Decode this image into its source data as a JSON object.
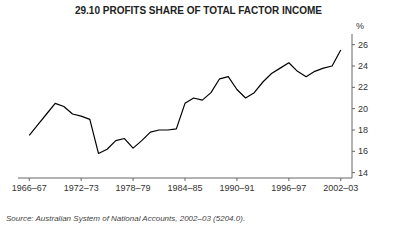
{
  "chart_data": {
    "type": "line",
    "title": "29.10   PROFITS SHARE OF TOTAL FACTOR INCOME",
    "ylabel": "%",
    "annotations": [
      "Source: Australian System of National Accounts, 2002–03 (5204.0)."
    ],
    "color": "#000000",
    "grid": false,
    "xlim": [
      1965.2,
      2003.8
    ],
    "xticks": [
      {
        "value": 1966.5,
        "label": "1966–67"
      },
      {
        "value": 1972.5,
        "label": "1972–73"
      },
      {
        "value": 1978.5,
        "label": "1978–79"
      },
      {
        "value": 1984.5,
        "label": "1984–85"
      },
      {
        "value": 1990.5,
        "label": "1990–91"
      },
      {
        "value": 1996.5,
        "label": "1996–97"
      },
      {
        "value": 2002.5,
        "label": "2002–03"
      }
    ],
    "ylim": [
      13.5,
      27.0
    ],
    "yticks": [
      14,
      16,
      18,
      20,
      22,
      24,
      26
    ],
    "x": [
      1966.5,
      1967.5,
      1968.5,
      1969.5,
      1970.5,
      1971.5,
      1972.5,
      1973.5,
      1974.5,
      1975.5,
      1976.5,
      1977.5,
      1978.5,
      1979.5,
      1980.5,
      1981.5,
      1982.5,
      1983.5,
      1984.5,
      1985.5,
      1986.5,
      1987.5,
      1988.5,
      1989.5,
      1990.5,
      1991.5,
      1992.5,
      1993.5,
      1994.5,
      1995.5,
      1996.5,
      1997.5,
      1998.5,
      1999.5,
      2000.5,
      2001.5,
      2002.5
    ],
    "values": [
      17.5,
      18.5,
      19.5,
      20.5,
      20.2,
      19.5,
      19.3,
      19.0,
      15.8,
      16.2,
      17.0,
      17.2,
      16.3,
      17.0,
      17.8,
      18.0,
      18.0,
      18.1,
      20.5,
      21.0,
      20.8,
      21.5,
      22.8,
      23.0,
      21.8,
      21.0,
      21.5,
      22.5,
      23.3,
      23.8,
      24.3,
      23.5,
      23.0,
      23.5,
      23.8,
      24.0,
      25.5
    ]
  }
}
